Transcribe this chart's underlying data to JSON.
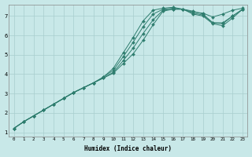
{
  "xlabel": "Humidex (Indice chaleur)",
  "ylabel": "",
  "bg_color": "#c8e8e8",
  "grid_color": "#a8cece",
  "line_color": "#2e7d6e",
  "xlim": [
    -0.5,
    23.5
  ],
  "ylim": [
    0.8,
    7.6
  ],
  "xticks": [
    0,
    1,
    2,
    3,
    4,
    5,
    6,
    7,
    8,
    9,
    10,
    11,
    12,
    13,
    14,
    15,
    16,
    17,
    18,
    19,
    20,
    21,
    22,
    23
  ],
  "yticks": [
    1,
    2,
    3,
    4,
    5,
    6,
    7
  ],
  "lines": [
    [
      1.2,
      1.55,
      1.85,
      2.15,
      2.45,
      2.75,
      3.05,
      3.3,
      3.55,
      3.8,
      4.05,
      4.55,
      5.05,
      5.75,
      6.55,
      7.25,
      7.35,
      7.35,
      7.2,
      7.15,
      6.95,
      7.1,
      7.3,
      7.4
    ],
    [
      1.2,
      1.55,
      1.85,
      2.15,
      2.45,
      2.75,
      3.05,
      3.3,
      3.55,
      3.8,
      4.1,
      4.7,
      5.35,
      6.1,
      6.8,
      7.3,
      7.35,
      7.35,
      7.1,
      7.0,
      6.6,
      6.5,
      6.9,
      7.35
    ],
    [
      1.2,
      1.55,
      1.85,
      2.15,
      2.45,
      2.75,
      3.05,
      3.3,
      3.55,
      3.85,
      4.2,
      4.9,
      5.65,
      6.45,
      7.1,
      7.35,
      7.4,
      7.35,
      7.15,
      7.05,
      6.65,
      6.6,
      7.0,
      7.35
    ],
    [
      1.2,
      1.55,
      1.85,
      2.15,
      2.45,
      2.75,
      3.05,
      3.3,
      3.55,
      3.85,
      4.3,
      5.1,
      5.9,
      6.75,
      7.3,
      7.4,
      7.45,
      7.35,
      7.25,
      7.1,
      6.65,
      6.65,
      7.0,
      7.35
    ]
  ]
}
